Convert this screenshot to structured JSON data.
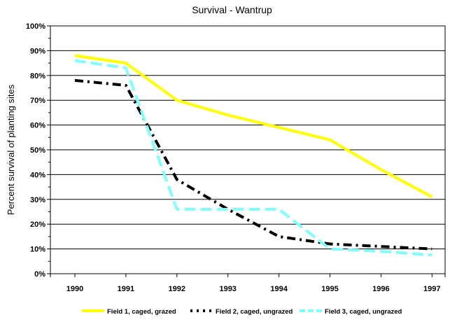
{
  "chart_data": {
    "type": "line",
    "title": "Survival - Wantrup",
    "ylabel": "Percent survival of planting sites",
    "xlabel": "",
    "x": [
      "1990",
      "1991",
      "1992",
      "1993",
      "1994",
      "1995",
      "1996",
      "1997"
    ],
    "ylim": [
      0,
      100
    ],
    "y_ticks": [
      "0%",
      "10%",
      "20%",
      "30%",
      "40%",
      "50%",
      "60%",
      "70%",
      "80%",
      "90%",
      "100%"
    ],
    "grid": "horizontal",
    "legend_position": "bottom",
    "series": [
      {
        "name": "Field 1, caged, grazed",
        "color": "#ffff00",
        "style": "solid",
        "values": [
          88,
          85,
          70,
          64,
          59,
          54,
          42,
          31
        ]
      },
      {
        "name": "Field 2, caged, ungrazed",
        "color": "#000000",
        "style": "dashdot",
        "values": [
          78,
          76,
          38,
          26,
          15,
          12,
          11,
          10
        ]
      },
      {
        "name": "Field 3, caged, ungrazed",
        "color": "#80ffff",
        "style": "dashed",
        "values": [
          86,
          83,
          26,
          26,
          26,
          10,
          9,
          7.5
        ]
      }
    ]
  }
}
